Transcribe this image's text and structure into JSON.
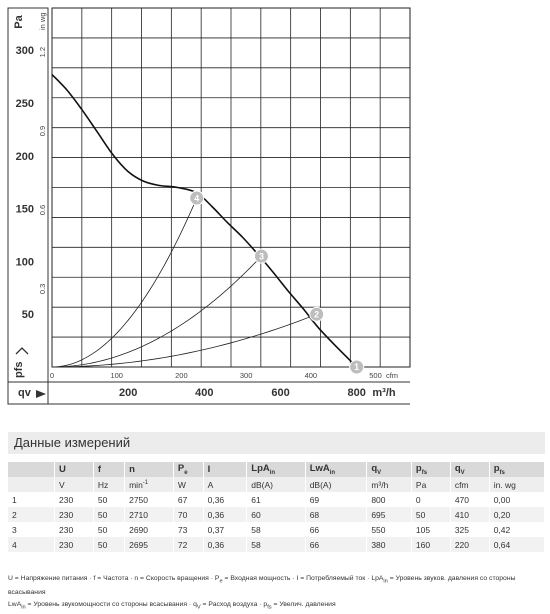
{
  "chart_data": {
    "type": "line",
    "left_unit": "Pa",
    "left_ticks": [
      "300",
      "250",
      "200",
      "150",
      "100",
      "50"
    ],
    "left_ylim": [
      0,
      340
    ],
    "pfs_label": "pfs",
    "inwg_unit": "in wg",
    "inwg_ticks": [
      "1.2",
      "0.9",
      "0.6",
      "0.3"
    ],
    "cfm_unit": "cfm",
    "cfm_ticks": [
      "0",
      "100",
      "200",
      "300",
      "400",
      "500"
    ],
    "qv_label": "qv",
    "m3h_unit": "m³/h",
    "m3h_ticks": [
      "200",
      "400",
      "600",
      "800"
    ],
    "xlim_m3h": [
      0,
      940
    ],
    "grid": true,
    "fan_curve": {
      "x": [
        0,
        40,
        80,
        120,
        160,
        200,
        240,
        280,
        330,
        380,
        420,
        460,
        500,
        540,
        580,
        620,
        660,
        700,
        750,
        800
      ],
      "y": [
        277,
        262,
        243,
        222,
        201,
        185,
        176,
        172,
        170,
        165,
        152,
        137,
        123,
        107,
        90,
        72,
        55,
        37,
        18,
        0
      ]
    },
    "operating_points": [
      {
        "label": "1",
        "qv_m3h": 800,
        "pfs_pa": 0
      },
      {
        "label": "2",
        "qv_m3h": 695,
        "pfs_pa": 50
      },
      {
        "label": "3",
        "qv_m3h": 550,
        "pfs_pa": 105
      },
      {
        "label": "4",
        "qv_m3h": 380,
        "pfs_pa": 160
      }
    ]
  },
  "table": {
    "title": "Данные измерений",
    "headers": [
      "",
      "U",
      "f",
      "n",
      "P",
      "I",
      "LpA",
      "LwA",
      "q",
      "p",
      "q",
      "p"
    ],
    "header_subs": [
      "",
      "",
      "",
      "",
      "e",
      "",
      "in",
      "in",
      "V",
      "fs",
      "V",
      "fs"
    ],
    "units": [
      "",
      "V",
      "Hz",
      "min",
      "W",
      "A",
      "dB(A)",
      "dB(A)",
      "m³/h",
      "Pa",
      "cfm",
      "in. wg"
    ],
    "unit_sup_min": "-1",
    "rows": [
      [
        "1",
        "230",
        "50",
        "2750",
        "67",
        "0,36",
        "61",
        "69",
        "800",
        "0",
        "470",
        "0,00"
      ],
      [
        "2",
        "230",
        "50",
        "2710",
        "70",
        "0,36",
        "60",
        "68",
        "695",
        "50",
        "410",
        "0,20"
      ],
      [
        "3",
        "230",
        "50",
        "2690",
        "73",
        "0,37",
        "58",
        "66",
        "550",
        "105",
        "325",
        "0,42"
      ],
      [
        "4",
        "230",
        "50",
        "2695",
        "72",
        "0,36",
        "58",
        "66",
        "380",
        "160",
        "220",
        "0,64"
      ]
    ]
  },
  "legend": {
    "line1": "U = Напряжение питания · f = Частота · n = Скорость вращения · P",
    "line1_sub1": "e",
    "line1_b": " = Входная мощность · I = Потребляемый ток · LpA",
    "line1_sub2": "in",
    "line1_c": " = Уровень звуков. давления со стороны всасывания",
    "line2": "LwA",
    "line2_sub1": "in",
    "line2_b": " = Уровень звукомощности со стороны всасывания · q",
    "line2_sub2": "V",
    "line2_c": " = Расход воздуха · p",
    "line2_sub3": "fs",
    "line2_d": " = Увелич. давления"
  }
}
